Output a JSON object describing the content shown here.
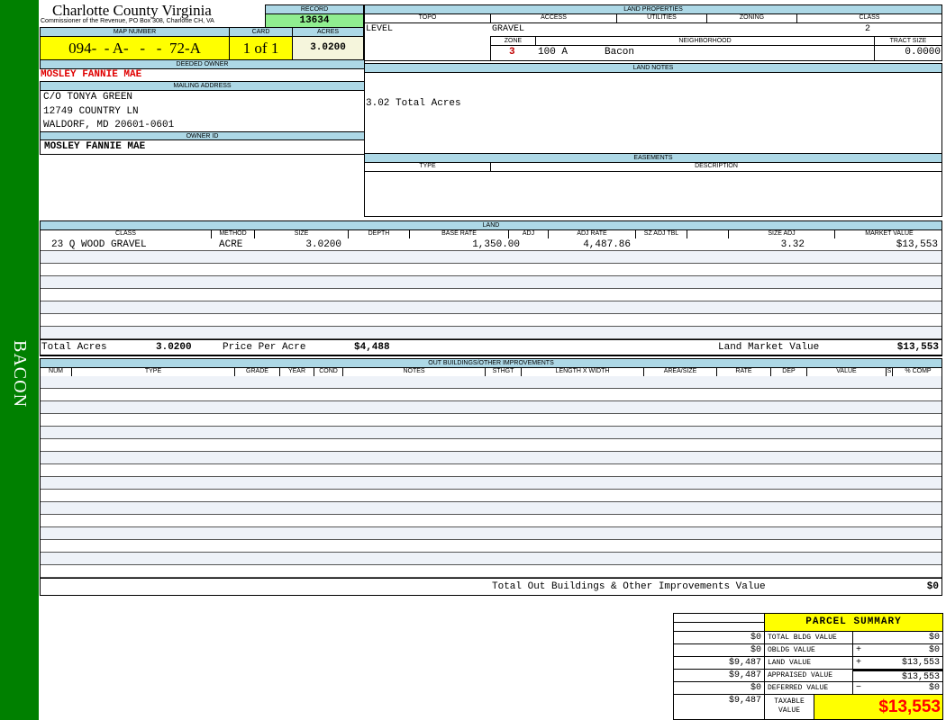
{
  "sidebar": {
    "label": "BACON",
    "color": "#008000"
  },
  "header": {
    "county": "Charlotte County Virginia",
    "subtitle": "Commissioner of the Revenue, PO Box 308, Charlotte CH, VA",
    "record_label": "RECORD",
    "record": "13634"
  },
  "parcel": {
    "map_label": "MAP NUMBER",
    "map": "094-  - A-   -   -  72-A",
    "card_label": "CARD",
    "card": "1 of 1",
    "acres_label": "ACRES",
    "acres": "3.0200"
  },
  "owner": {
    "deeded_label": "DEEDED OWNER",
    "deeded": "MOSLEY FANNIE MAE",
    "mailing_label": "MAILING ADDRESS",
    "address": [
      "C/O TONYA GREEN",
      "12749 COUNTRY LN",
      "WALDORF, MD 20601-0601"
    ],
    "id_label": "OWNER ID",
    "id": "MOSLEY FANNIE MAE"
  },
  "land_properties": {
    "title": "LAND PROPERTIES",
    "topo_label": "TOPO",
    "access_label": "ACCESS",
    "utilities_label": "UTILITIES",
    "zoning_label": "ZONING",
    "class_label": "CLASS",
    "topo": "LEVEL",
    "access": "GRAVEL",
    "class": "2",
    "zone_label": "ZONE",
    "neighborhood_label": "NEIGHBORHOOD",
    "tract_label": "TRACT SIZE",
    "zone": "3",
    "neighborhood_code": "100 A",
    "neighborhood": "Bacon",
    "tract": "0.0000"
  },
  "land_notes": {
    "title": "LAND NOTES",
    "text": "3.02 Total Acres"
  },
  "easements": {
    "title": "EASEMENTS",
    "type_label": "TYPE",
    "description_label": "DESCRIPTION"
  },
  "land": {
    "title": "LAND",
    "columns": [
      "CLASS",
      "METHOD",
      "SIZE",
      "DEPTH",
      "BASE RATE",
      "ADJ",
      "ADJ RATE",
      "SZ ADJ TBL",
      "",
      "Size Adj",
      "MARKET VALUE"
    ],
    "rows": [
      {
        "class": "23 Q WOOD GRAVEL",
        "method": "ACRE",
        "size": "3.0200",
        "base_rate": "1,350.00",
        "adj_rate": "4,487.86",
        "size_adj": "3.32",
        "market": "$13,553"
      }
    ],
    "total_acres_label": "Total Acres",
    "total_acres": "3.0200",
    "ppa_label": "Price Per Acre",
    "ppa": "$4,488",
    "lmv_label": "Land Market Value",
    "lmv": "$13,553"
  },
  "outbuildings": {
    "title": "OUT BUILDINGS/OTHER IMPROVEMENTS",
    "columns": [
      "NUM",
      "TYPE",
      "GRADE",
      "YEAR",
      "COND",
      "NOTES",
      "STHGT",
      "LENGTH X WIDTH",
      "AREA/SIZE",
      "RATE",
      "DEP",
      "VALUE",
      "S",
      "% COMP"
    ],
    "total_label": "Total Out Buildings & Other Improvements Value",
    "total": "$0"
  },
  "summary": {
    "title": "PARCEL SUMMARY",
    "rows": [
      {
        "left": "$0",
        "label": "TOTAL BLDG VALUE",
        "op": "",
        "value": "$0"
      },
      {
        "left": "$0",
        "label": "OBLDG VALUE",
        "op": "+",
        "value": "$0"
      },
      {
        "left": "$9,487",
        "label": "LAND VALUE",
        "op": "+",
        "value": "$13,553"
      },
      {
        "left": "$9,487",
        "label": "APPRAISED VALUE",
        "op": "",
        "value": "$13,553"
      },
      {
        "left": "$0",
        "label": "DEFERRED VALUE",
        "op": "−",
        "value": "$0"
      }
    ],
    "taxable_left": "$9,487",
    "taxable_label": "TAXABLE VALUE",
    "taxable": "$13,553"
  }
}
